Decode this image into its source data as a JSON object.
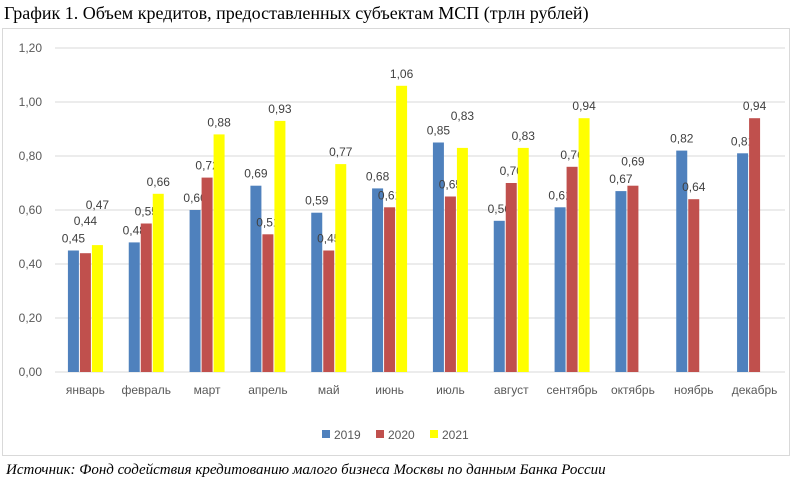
{
  "title": "График 1. Объем кредитов, предоставленных субъектам МСП (трлн рублей)",
  "source": "Источник: Фонд содействия кредитованию малого бизнеса Москвы по данным Банка России",
  "chart_data": {
    "type": "bar",
    "title": "График 1. Объем кредитов, предоставленных субъектам МСП (трлн рублей)",
    "categories": [
      "январь",
      "февраль",
      "март",
      "апрель",
      "май",
      "июнь",
      "июль",
      "август",
      "сентябрь",
      "октябрь",
      "ноябрь",
      "декабрь"
    ],
    "series": [
      {
        "name": "2019",
        "color": "#4f81bd",
        "values": [
          0.45,
          0.48,
          0.6,
          0.69,
          0.59,
          0.68,
          0.85,
          0.56,
          0.61,
          0.67,
          0.82,
          0.81
        ]
      },
      {
        "name": "2020",
        "color": "#c0504d",
        "values": [
          0.44,
          0.55,
          0.72,
          0.51,
          0.45,
          0.61,
          0.65,
          0.7,
          0.76,
          0.69,
          0.64,
          0.94
        ]
      },
      {
        "name": "2021",
        "color": "#ffff00",
        "values": [
          0.47,
          0.66,
          0.88,
          0.93,
          0.77,
          1.06,
          0.83,
          0.83,
          0.94,
          null,
          null,
          null
        ]
      }
    ],
    "ylim": [
      0,
      1.2
    ],
    "yticks": [
      "0,00",
      "0,20",
      "0,40",
      "0,60",
      "0,80",
      "1,00",
      "1,20"
    ],
    "grid": true,
    "legend": "bottom"
  }
}
